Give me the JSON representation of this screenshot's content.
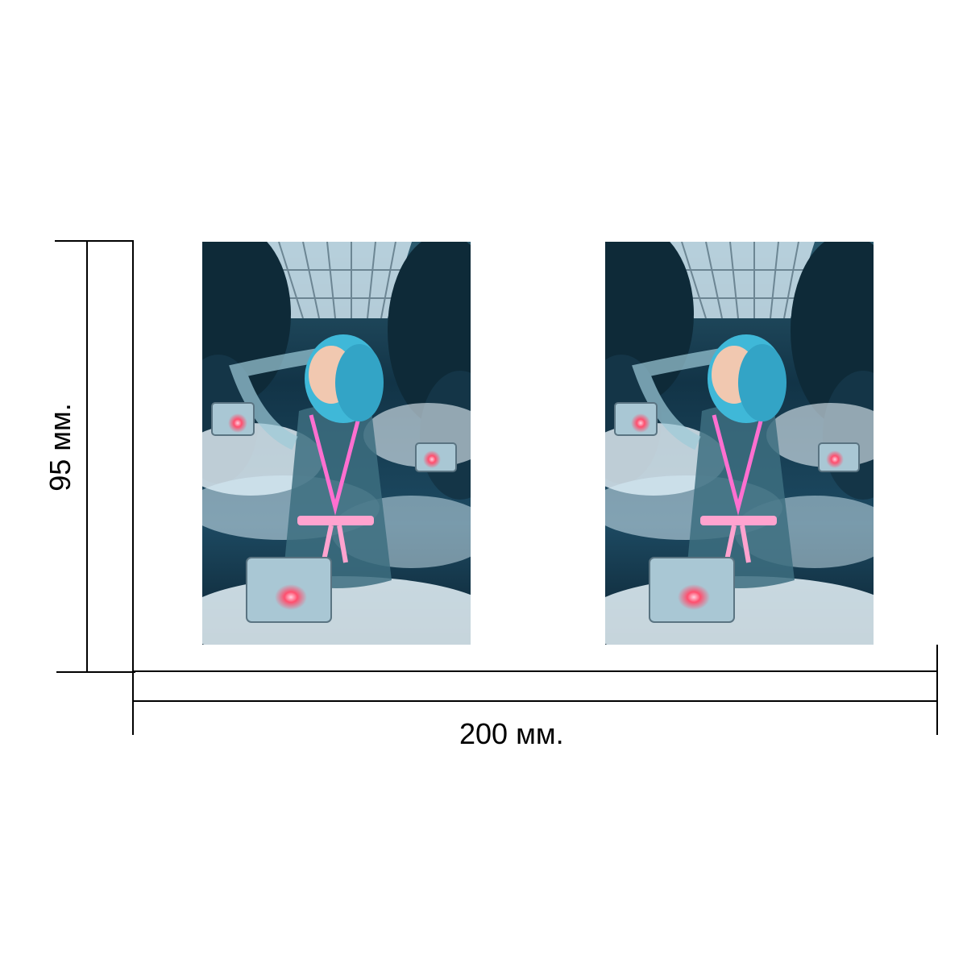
{
  "dimensions": {
    "width_label": "200 мм.",
    "height_label": "95 мм."
  },
  "artworks": [
    {
      "name": "artwork-left"
    },
    {
      "name": "artwork-right"
    }
  ],
  "colors": {
    "line": "#000000",
    "background": "#ffffff",
    "sky": "#cfe4ee",
    "foliage": "#0e2a38",
    "cloud": "#e8f4fa",
    "hair": "#3fb8d8",
    "robe_trim": "#ff6fd0",
    "cube": "#a9c7d4",
    "cube_glow": "#ff4f6e"
  }
}
